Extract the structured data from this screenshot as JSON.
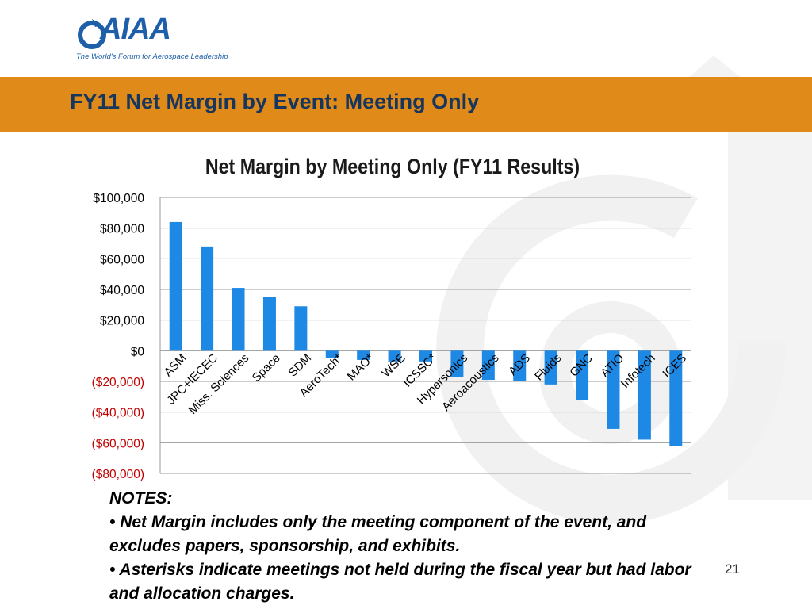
{
  "logo": {
    "text": "AIAA",
    "tagline": "The World's Forum for Aerospace Leadership"
  },
  "banner": {
    "title": "FY11 Net Margin by Event:  Meeting Only"
  },
  "notes": {
    "heading": "NOTES:",
    "items": [
      "Net Margin includes only the meeting component of the event, and excludes papers, sponsorship, and exhibits.",
      "Asterisks indicate meetings not held during the fiscal year but had labor and allocation charges."
    ]
  },
  "page_number": "21",
  "colors": {
    "banner": "#e08a1a",
    "bar": "#1e88e5",
    "negative_tick": "#c00000",
    "title": "#17365d"
  },
  "chart_data": {
    "type": "bar",
    "title": "Net Margin by Meeting Only (FY11 Results)",
    "xlabel": "",
    "ylabel": "",
    "ylim": [
      -80000,
      100000
    ],
    "grid": true,
    "legend": "none",
    "yticks": [
      {
        "value": 100000,
        "label": "$100,000"
      },
      {
        "value": 80000,
        "label": "$80,000"
      },
      {
        "value": 60000,
        "label": "$60,000"
      },
      {
        "value": 40000,
        "label": "$40,000"
      },
      {
        "value": 20000,
        "label": "$20,000"
      },
      {
        "value": 0,
        "label": "$0"
      },
      {
        "value": -20000,
        "label": "($20,000)"
      },
      {
        "value": -40000,
        "label": "($40,000)"
      },
      {
        "value": -60000,
        "label": "($60,000)"
      },
      {
        "value": -80000,
        "label": "($80,000)"
      }
    ],
    "categories": [
      "ASM",
      "JPC+IECEC",
      "Miss. Sciences",
      "Space",
      "SDM",
      "AeroTech*",
      "MAO*",
      "WSE",
      "ICSSC*",
      "Hypersonics",
      "Aeroacoustics",
      "ADS",
      "Fluids",
      "GNC",
      "ATIO",
      "Infotech",
      "ICES"
    ],
    "values": [
      84000,
      68000,
      41000,
      35000,
      29000,
      -5000,
      -6000,
      -7000,
      -7000,
      -17000,
      -19000,
      -20000,
      -22000,
      -32000,
      -51000,
      -58000,
      -62000
    ]
  }
}
